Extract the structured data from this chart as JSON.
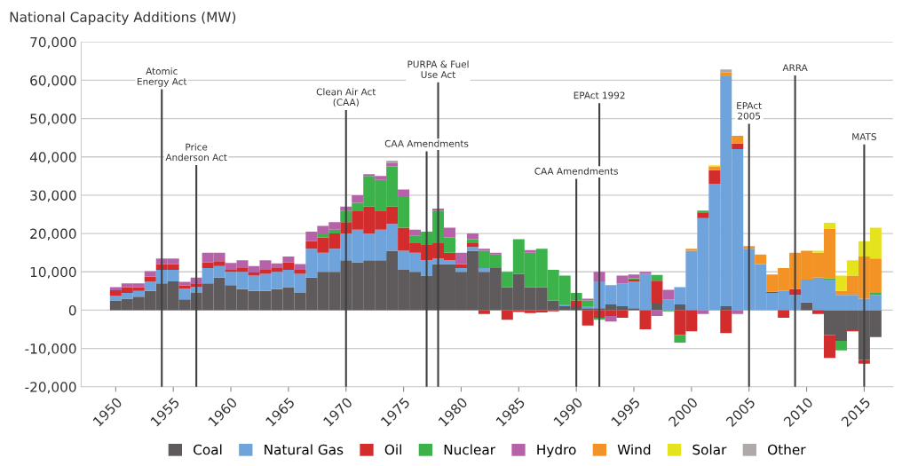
{
  "chart_data": {
    "type": "bar",
    "stacked": true,
    "title": "National Capacity Additions (MW)",
    "x": [
      1950,
      1951,
      1952,
      1953,
      1954,
      1955,
      1956,
      1957,
      1958,
      1959,
      1960,
      1961,
      1962,
      1963,
      1964,
      1965,
      1966,
      1967,
      1968,
      1969,
      1970,
      1971,
      1972,
      1973,
      1974,
      1975,
      1976,
      1977,
      1978,
      1979,
      1980,
      1981,
      1982,
      1983,
      1984,
      1985,
      1986,
      1987,
      1988,
      1989,
      1990,
      1991,
      1992,
      1993,
      1994,
      1995,
      1996,
      1997,
      1998,
      1999,
      2000,
      2001,
      2002,
      2003,
      2004,
      2005,
      2006,
      2007,
      2008,
      2009,
      2010,
      2011,
      2012,
      2013,
      2014,
      2015,
      2016
    ],
    "series": [
      {
        "name": "Coal",
        "color": "#5f5a5b",
        "values": [
          2500,
          3000,
          3500,
          5000,
          7000,
          7500,
          2800,
          4500,
          7000,
          8500,
          6500,
          5500,
          5000,
          5000,
          5500,
          6000,
          4500,
          8500,
          10000,
          10000,
          13000,
          12500,
          13000,
          13000,
          15500,
          10500,
          10000,
          9000,
          12000,
          12000,
          10000,
          15500,
          10000,
          11000,
          6000,
          9500,
          6000,
          6000,
          2500,
          1000,
          1000,
          500,
          500,
          1500,
          1000,
          500,
          0,
          1700,
          0,
          1500,
          0,
          0,
          0,
          1000,
          0,
          0,
          0,
          0,
          0,
          0,
          2000,
          0,
          -6500,
          -8000,
          -5000,
          -13000,
          -7000
        ]
      },
      {
        "name": "Natural Gas",
        "color": "#6fa3dc",
        "values": [
          1200,
          1500,
          1500,
          2500,
          3500,
          3000,
          2800,
          1500,
          4000,
          3000,
          3500,
          4500,
          4000,
          4500,
          4500,
          4500,
          5000,
          7500,
          5000,
          6000,
          7000,
          8500,
          7000,
          8000,
          7000,
          5000,
          5000,
          4000,
          1500,
          1000,
          1000,
          1000,
          1000,
          0,
          0,
          0,
          0,
          0,
          0,
          500,
          0,
          500,
          7000,
          5000,
          6000,
          7000,
          9500,
          0,
          2800,
          4500,
          15500,
          24000,
          33000,
          60000,
          42000,
          16000,
          12000,
          4500,
          5000,
          4000,
          6000,
          8500,
          8000,
          4000,
          4000,
          3000,
          4000
        ]
      },
      {
        "name": "Oil",
        "color": "#d22c2c",
        "values": [
          1500,
          1500,
          1000,
          1200,
          1500,
          1500,
          800,
          1000,
          1500,
          1300,
          500,
          1000,
          800,
          1000,
          1000,
          2000,
          1000,
          2000,
          4000,
          4000,
          3000,
          5000,
          7000,
          5000,
          4500,
          6000,
          2500,
          4000,
          4000,
          2000,
          1000,
          1000,
          -1000,
          0,
          -2500,
          -500,
          -800,
          -600,
          -300,
          0,
          1500,
          -4000,
          -2000,
          -1500,
          -2000,
          500,
          -5000,
          6000,
          0,
          -6500,
          -5500,
          1500,
          3500,
          -6000,
          1500,
          0,
          0,
          300,
          -2000,
          1500,
          0,
          -1000,
          -6000,
          0,
          -500,
          -1000,
          0
        ]
      },
      {
        "name": "Nuclear",
        "color": "#3cb34a",
        "values": [
          0,
          0,
          0,
          0,
          0,
          0,
          0,
          0,
          0,
          0,
          0,
          0,
          0,
          0,
          0,
          0,
          0,
          0,
          1000,
          1000,
          3000,
          2000,
          8000,
          8000,
          10500,
          8000,
          2000,
          3500,
          8500,
          4000,
          0,
          1000,
          4500,
          3500,
          4000,
          9000,
          9000,
          10000,
          8000,
          7500,
          2000,
          1500,
          -500,
          0,
          0,
          300,
          0,
          1500,
          -300,
          -2000,
          0,
          500,
          0,
          0,
          0,
          0,
          0,
          0,
          0,
          0,
          0,
          0,
          300,
          -2500,
          0,
          0,
          500
        ]
      },
      {
        "name": "Hydro",
        "color": "#b662a8",
        "values": [
          800,
          1000,
          1000,
          1500,
          1500,
          1500,
          1000,
          1500,
          2500,
          2200,
          1800,
          2000,
          1700,
          2500,
          1200,
          1500,
          1500,
          2500,
          2000,
          2000,
          1000,
          2000,
          500,
          1000,
          1000,
          2000,
          1500,
          0,
          500,
          2500,
          3000,
          1500,
          500,
          500,
          0,
          0,
          700,
          0,
          0,
          0,
          0,
          500,
          2500,
          -1500,
          2000,
          1000,
          500,
          -1500,
          2500,
          0,
          0,
          -1000,
          0,
          0,
          -1000,
          0,
          0,
          0,
          0,
          0,
          0,
          0,
          0,
          0,
          0,
          0,
          0
        ]
      },
      {
        "name": "Wind",
        "color": "#f39325",
        "values": [
          0,
          0,
          0,
          0,
          0,
          0,
          0,
          0,
          0,
          0,
          0,
          0,
          0,
          0,
          0,
          0,
          0,
          0,
          0,
          0,
          0,
          0,
          0,
          0,
          0,
          0,
          0,
          0,
          0,
          0,
          0,
          0,
          0,
          0,
          0,
          0,
          0,
          0,
          0,
          0,
          0,
          0,
          0,
          0,
          0,
          0,
          0,
          0,
          0,
          0,
          500,
          0,
          1000,
          1000,
          2000,
          700,
          2500,
          4500,
          6000,
          9500,
          7500,
          6500,
          13000,
          1000,
          5000,
          11000,
          9000
        ]
      },
      {
        "name": "Solar",
        "color": "#e5e31d",
        "values": [
          0,
          0,
          0,
          0,
          0,
          0,
          0,
          0,
          0,
          0,
          0,
          0,
          0,
          0,
          0,
          0,
          0,
          0,
          0,
          0,
          0,
          0,
          0,
          0,
          0,
          0,
          0,
          0,
          0,
          0,
          0,
          0,
          0,
          0,
          0,
          0,
          0,
          0,
          0,
          0,
          0,
          0,
          0,
          0,
          0,
          0,
          0,
          0,
          0,
          0,
          0,
          0,
          300,
          0,
          0,
          0,
          0,
          0,
          0,
          0,
          0,
          500,
          1500,
          4000,
          4000,
          4000,
          8000
        ]
      },
      {
        "name": "Other",
        "color": "#b0a9a9",
        "values": [
          0,
          0,
          0,
          0,
          0,
          0,
          0,
          0,
          0,
          0,
          0,
          0,
          0,
          0,
          0,
          0,
          0,
          0,
          0,
          0,
          0,
          0,
          0,
          0,
          500,
          0,
          0,
          0,
          0,
          0,
          0,
          0,
          0,
          0,
          0,
          0,
          0,
          0,
          0,
          0,
          0,
          0,
          0,
          0,
          0,
          0,
          0,
          0,
          0,
          0,
          0,
          0,
          0,
          800,
          0,
          0,
          0,
          0,
          0,
          0,
          0,
          0,
          0,
          0,
          0,
          0,
          0
        ]
      }
    ],
    "xlim": [
      1947,
      2017.5
    ],
    "xticks": [
      1950,
      1955,
      1960,
      1965,
      1970,
      1975,
      1980,
      1985,
      1990,
      1995,
      2000,
      2005,
      2010,
      2015
    ],
    "ylim": [
      -20000,
      70000
    ],
    "yticks": [
      {
        "value": -20000,
        "label": "-20,000"
      },
      {
        "value": -10000,
        "label": "-10,000"
      },
      {
        "value": 0,
        "label": "0"
      },
      {
        "value": 10000,
        "label": "10,000"
      },
      {
        "value": 20000,
        "label": "20,000"
      },
      {
        "value": 30000,
        "label": "30,000"
      },
      {
        "value": 40000,
        "label": "40,000"
      },
      {
        "value": 50000,
        "label": "50,000"
      },
      {
        "value": 60000,
        "label": "60,000"
      },
      {
        "value": 70000,
        "label": "70,000"
      }
    ],
    "grid": "y",
    "legend": "bottom",
    "ref_lines": [
      {
        "axis": "x",
        "value": 1954,
        "label": "Atomic\nEnergy Act",
        "color": "#404040"
      },
      {
        "axis": "x",
        "value": 1957,
        "label": "Price\nAnderson Act",
        "color": "#404040"
      },
      {
        "axis": "x",
        "value": 1970,
        "label": "Clean Air Act\n(CAA)",
        "color": "#404040"
      },
      {
        "axis": "x",
        "value": 1977,
        "label": "CAA Amendments",
        "color": "#404040"
      },
      {
        "axis": "x",
        "value": 1978,
        "label": "PURPA & Fuel\nUse Act",
        "color": "#404040"
      },
      {
        "axis": "x",
        "value": 1990,
        "label": "CAA Amendments",
        "color": "#404040"
      },
      {
        "axis": "x",
        "value": 1992,
        "label": "EPAct 1992",
        "color": "#404040"
      },
      {
        "axis": "x",
        "value": 2005,
        "label": "EPAct\n2005",
        "color": "#404040"
      },
      {
        "axis": "x",
        "value": 2009,
        "label": "ARRA",
        "color": "#404040"
      },
      {
        "axis": "x",
        "value": 2015,
        "label": "MATS",
        "color": "#404040"
      }
    ]
  }
}
